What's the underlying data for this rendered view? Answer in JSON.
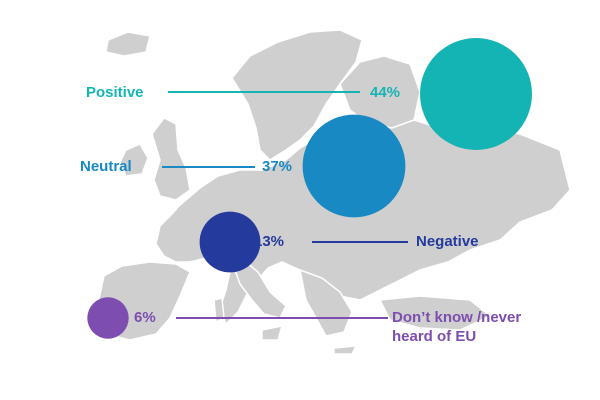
{
  "chart_data": {
    "type": "bubble",
    "categories": [
      "Positive",
      "Neutral",
      "Negative",
      "Don’t know /never heard of EU"
    ],
    "values": [
      44,
      37,
      13,
      6
    ],
    "value_labels": [
      "44%",
      "37%",
      "13%",
      "6%"
    ],
    "unit": "%",
    "legend": "none",
    "grid": false,
    "background": "map of Europe",
    "colors": {
      "Positive": "#15b4b4",
      "Neutral": "#1889c3",
      "Negative": "#243a9c",
      "Don’t know /never heard of EU": "#7d4db0"
    }
  },
  "labels": {
    "positive": "Positive",
    "neutral": "Neutral",
    "negative": "Negative",
    "dont_know_line1": "Don’t know /never",
    "dont_know_line2": "heard of EU"
  }
}
